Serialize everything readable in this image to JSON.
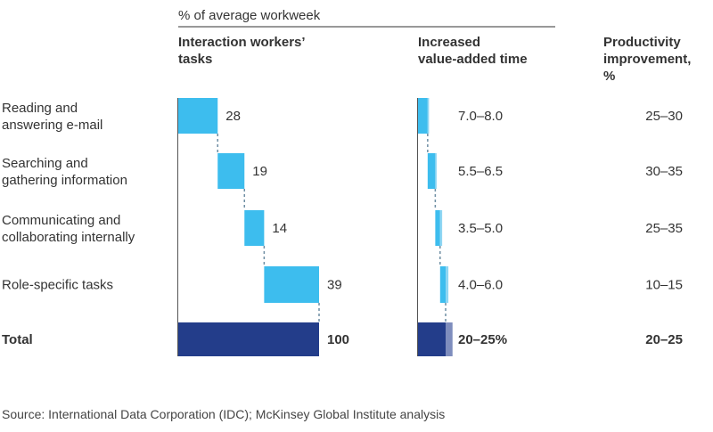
{
  "header": {
    "unit_label": "% of average workweek",
    "col1_title_line1": "Interaction workers’",
    "col1_title_line2": "tasks",
    "col2_title_line1": "Increased",
    "col2_title_line2": "value-added time",
    "col3_title_line1": "Productivity",
    "col3_title_line2": "improvement,",
    "col3_title_line3": "%"
  },
  "source": "Source: International Data Corporation (IDC); McKinsey Global Institute analysis",
  "colors": {
    "task_bar": "#3dbdee",
    "task_bar_high": "#8fd6f3",
    "total_bar": "#233d8a",
    "total_bar_high": "#7e8dbd",
    "connector": "#6e8ea3"
  },
  "chart_data": {
    "type": "waterfall",
    "categories": [
      [
        "Reading and",
        "answering e-mail"
      ],
      [
        "Searching and",
        "gathering information"
      ],
      [
        "Communicating and",
        "collaborating internally"
      ],
      [
        "Role-specific tasks"
      ]
    ],
    "total_label": "Total",
    "tasks_share": {
      "values": [
        28,
        19,
        14,
        39
      ],
      "labels": [
        "28",
        "19",
        "14",
        "39"
      ],
      "total": 100,
      "total_label": "100"
    },
    "value_added_time": {
      "low": [
        7.0,
        5.5,
        3.5,
        4.0
      ],
      "high": [
        8.0,
        6.5,
        5.0,
        6.0
      ],
      "labels": [
        "7.0–8.0",
        "5.5–6.5",
        "3.5–5.0",
        "4.0–6.0"
      ],
      "total_low": 20,
      "total_high": 25,
      "total_label": "20–25%"
    },
    "productivity_improvement": {
      "labels": [
        "25–30",
        "30–35",
        "25–35",
        "10–15"
      ],
      "total_label": "20–25"
    }
  }
}
